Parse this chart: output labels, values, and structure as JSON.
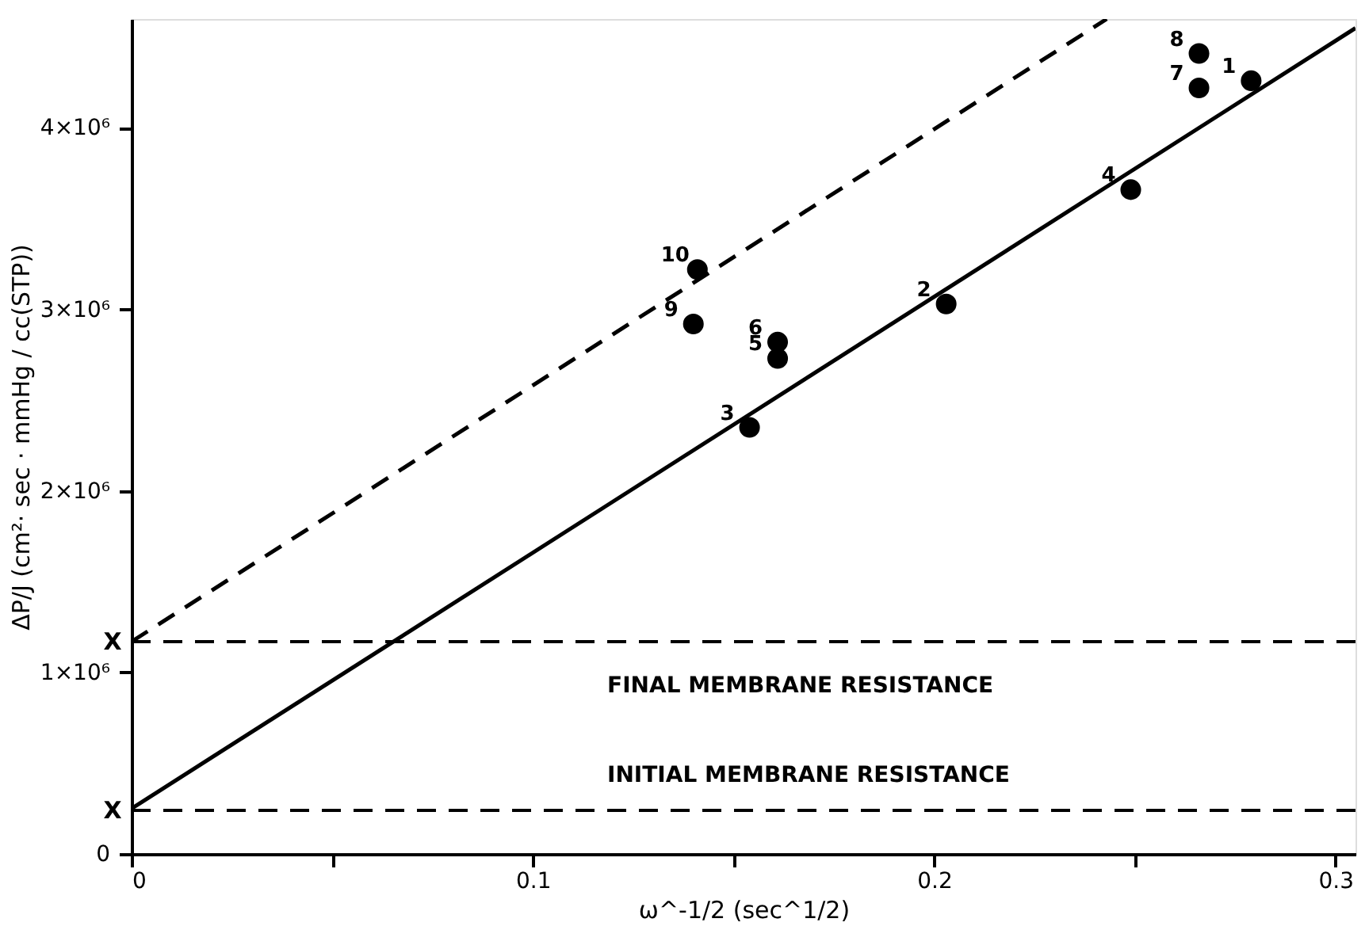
{
  "chart_data": {
    "type": "scatter",
    "xlabel": "ω^-1/2 (sec^1/2)",
    "ylabel": "ΔP/J (cm²· sec · mmHg / cc(STP))",
    "xlim": [
      0,
      0.305
    ],
    "ylim": [
      0,
      4600000
    ],
    "xticks": [
      0,
      {
        "value": 0.05,
        "label": null
      },
      0.1,
      {
        "value": 0.15,
        "label": null
      },
      0.2,
      {
        "value": 0.25,
        "label": null
      },
      0.3
    ],
    "yticks": [
      0,
      {
        "value": 1000000,
        "label": "1×10⁶"
      },
      {
        "value": 2000000,
        "label": "2×10⁶"
      },
      {
        "value": 3000000,
        "label": "3×10⁶"
      },
      {
        "value": 4000000,
        "label": "4×10⁶"
      }
    ],
    "grid": false,
    "annotations": [
      {
        "text": "1",
        "x": 0.279,
        "y": 4260000
      },
      {
        "text": "2",
        "x": 0.203,
        "y": 3030000
      },
      {
        "text": "3",
        "x": 0.154,
        "y": 2350000
      },
      {
        "text": "4",
        "x": 0.249,
        "y": 3660000
      },
      {
        "text": "5",
        "x": 0.161,
        "y": 2730000
      },
      {
        "text": "6",
        "x": 0.161,
        "y": 2820000
      },
      {
        "text": "7",
        "x": 0.266,
        "y": 4220000
      },
      {
        "text": "8",
        "x": 0.266,
        "y": 4410000
      },
      {
        "text": "9",
        "x": 0.14,
        "y": 2920000
      },
      {
        "text": "10",
        "x": 0.141,
        "y": 3220000
      },
      {
        "text": "X",
        "x": 0,
        "y": 240000
      },
      {
        "text": "X",
        "x": 0,
        "y": 1170000
      }
    ],
    "series": [
      {
        "marker": "circle",
        "color": "#000000",
        "x": [
          0.279,
          0.203,
          0.154,
          0.249,
          0.161,
          0.161,
          0.266,
          0.266,
          0.14,
          0.141
        ],
        "values": [
          4260000,
          3030000,
          2350000,
          3660000,
          2730000,
          2820000,
          4220000,
          4410000,
          2920000,
          3220000
        ]
      },
      {
        "type": "line",
        "line_style": "solid",
        "color": "#000000",
        "x": [
          0,
          0.305
        ],
        "values": [
          250000,
          4550000
        ]
      },
      {
        "type": "line",
        "line_style": "dashed",
        "color": "#000000",
        "x": [
          0,
          0.243
        ],
        "values": [
          1170000,
          4600000
        ]
      }
    ],
    "ref_lines": [
      {
        "axis": "y",
        "value": 1170000,
        "label": "FINAL MEMBRANE RESISTANCE",
        "line_style": "dashed",
        "color": "#000000"
      },
      {
        "axis": "y",
        "value": 240000,
        "label": "INITIAL MEMBRANE RESISTANCE",
        "line_style": "dashed",
        "color": "#000000"
      }
    ]
  }
}
